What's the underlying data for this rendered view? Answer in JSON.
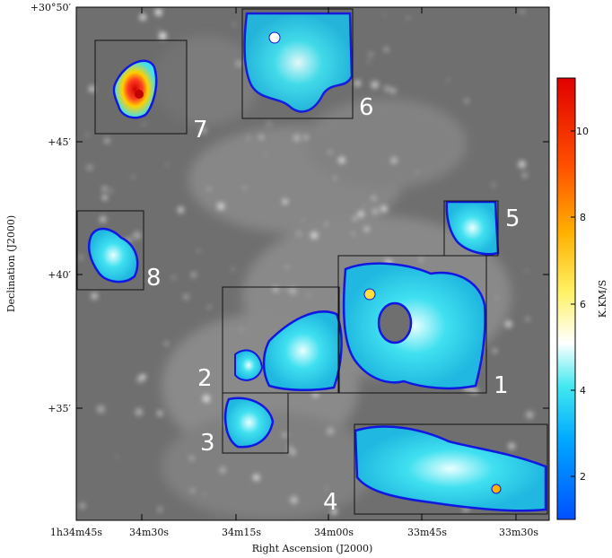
{
  "axes": {
    "xlabel": "Right Ascension (J2000)",
    "ylabel": "Declination (J2000)",
    "xticks": [
      {
        "label": "1h34m45s"
      },
      {
        "label": "34m30s"
      },
      {
        "label": "34m15s"
      },
      {
        "label": "34m00s"
      },
      {
        "label": "33m45s"
      },
      {
        "label": "33m30s"
      }
    ],
    "yticks": [
      {
        "label": "+30°50′"
      },
      {
        "label": "+45′"
      },
      {
        "label": "+40′"
      },
      {
        "label": "+35′"
      }
    ]
  },
  "regions": [
    {
      "label": "1"
    },
    {
      "label": "2"
    },
    {
      "label": "3"
    },
    {
      "label": "4"
    },
    {
      "label": "5"
    },
    {
      "label": "6"
    },
    {
      "label": "7"
    },
    {
      "label": "8"
    }
  ],
  "colorbar": {
    "label": "K.KM/S",
    "ticks": [
      "2",
      "4",
      "6",
      "8",
      "10"
    ],
    "range": [
      1,
      11.2
    ],
    "colors": [
      "#0000ff",
      "#00c8ff",
      "#ffffff",
      "#ffff00",
      "#ff0000"
    ]
  }
}
